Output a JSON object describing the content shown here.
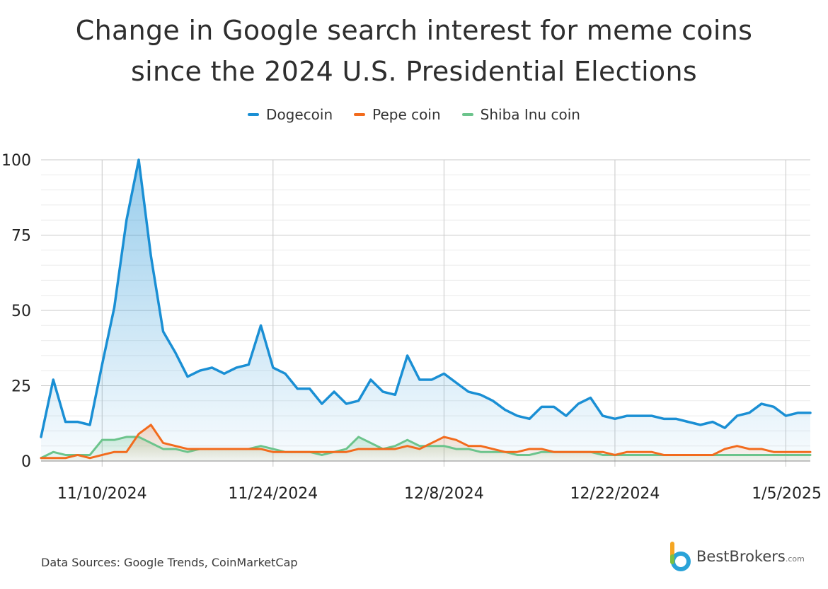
{
  "title": {
    "line1": "Change in Google search interest for meme coins",
    "line2": "since the 2024 U.S. Presidential Elections"
  },
  "footer": {
    "source": "Data Sources: Google Trends, CoinMarketCap",
    "brand": "BestBrokers",
    "brand_domain": ".com"
  },
  "chart_data": {
    "type": "area",
    "x_tick_labels": [
      "11/10/2024",
      "11/24/2024",
      "12/8/2024",
      "12/22/2024",
      "1/5/2025"
    ],
    "x_start": "11/5/2024",
    "x_end": "1/7/2025",
    "ylim": [
      0,
      100
    ],
    "y_ticks": [
      0,
      25,
      50,
      75,
      100
    ],
    "grid": true,
    "legend_position": "top-center",
    "series": [
      {
        "name": "Dogecoin",
        "color": "#1a8fd4",
        "values": [
          8,
          27,
          13,
          13,
          12,
          32,
          51,
          80,
          100,
          68,
          43,
          36,
          28,
          30,
          31,
          29,
          31,
          32,
          45,
          31,
          29,
          24,
          24,
          19,
          23,
          19,
          20,
          27,
          23,
          22,
          35,
          27,
          27,
          29,
          26,
          23,
          22,
          20,
          17,
          15,
          14,
          18,
          18,
          15,
          19,
          21,
          15,
          14,
          15,
          15,
          15,
          14,
          14,
          13,
          12,
          13,
          11,
          15,
          16,
          19,
          18,
          15,
          16,
          16
        ]
      },
      {
        "name": "Pepe coin",
        "color": "#f26b1d",
        "values": [
          1,
          1,
          1,
          2,
          1,
          2,
          3,
          3,
          9,
          12,
          6,
          5,
          4,
          4,
          4,
          4,
          4,
          4,
          4,
          3,
          3,
          3,
          3,
          3,
          3,
          3,
          4,
          4,
          4,
          4,
          5,
          4,
          6,
          8,
          7,
          5,
          5,
          4,
          3,
          3,
          4,
          4,
          3,
          3,
          3,
          3,
          3,
          2,
          3,
          3,
          3,
          2,
          2,
          2,
          2,
          2,
          4,
          5,
          4,
          4,
          3,
          3,
          3,
          3
        ]
      },
      {
        "name": "Shiba Inu coin",
        "color": "#6cc48c",
        "values": [
          1,
          3,
          2,
          2,
          2,
          7,
          7,
          8,
          8,
          6,
          4,
          4,
          3,
          4,
          4,
          4,
          4,
          4,
          5,
          4,
          3,
          3,
          3,
          2,
          3,
          4,
          8,
          6,
          4,
          5,
          7,
          5,
          5,
          5,
          4,
          4,
          3,
          3,
          3,
          2,
          2,
          3,
          3,
          3,
          3,
          3,
          2,
          2,
          2,
          2,
          2,
          2,
          2,
          2,
          2,
          2,
          2,
          2,
          2,
          2,
          2,
          2,
          2,
          2
        ]
      }
    ]
  }
}
